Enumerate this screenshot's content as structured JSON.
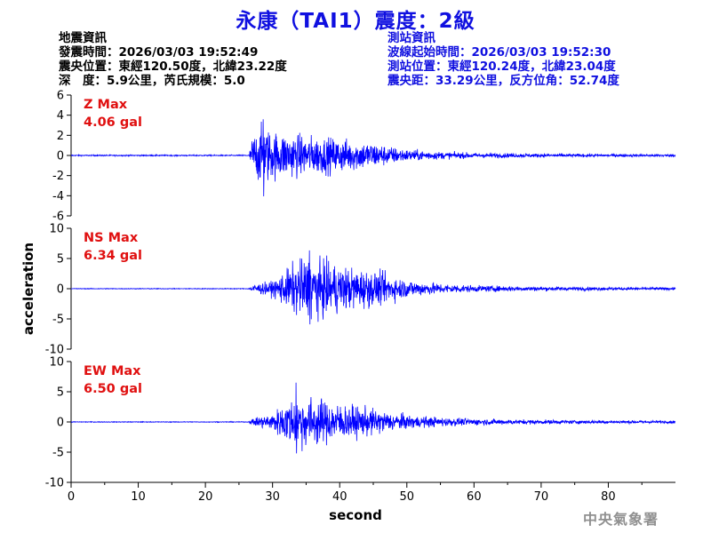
{
  "title": "永康（TAI1）震度：2級",
  "earthquake_info": {
    "heading": "地震資訊",
    "time": "發震時間：2026/03/03 19:52:49",
    "epicenter": "震央位置：東經120.50度，北緯23.22度",
    "depth_magnitude": "深　度：5.9公里，芮氏規模：5.0"
  },
  "station_info": {
    "heading": "測站資訊",
    "wave_start": "波線起始時間：2026/03/03 19:52:30",
    "location": "測站位置：東經120.24度，北緯23.04度",
    "distance_azimuth": "震央距：33.29公里，反方位角：52.74度"
  },
  "agency": "中央氣象署",
  "colors": {
    "trace": "#0000ff",
    "label": "#e01010",
    "title": "#1010e0"
  },
  "chart_data": {
    "type": "line",
    "xlabel": "second",
    "ylabel": "acceleration",
    "xlim": [
      0,
      90
    ],
    "x_ticks": [
      0,
      10,
      20,
      30,
      40,
      50,
      60,
      70,
      80
    ],
    "grid": false,
    "channels": [
      {
        "label": "Z Max",
        "max_text": "4.06 gal",
        "max_value": 4.06,
        "ylim": [
          -6,
          6
        ],
        "y_ticks": [
          -6,
          -4,
          -2,
          0,
          2,
          4,
          6
        ],
        "onset": 26.5,
        "envelope_peak_time": 29,
        "peak_time": 28.6,
        "peak_pos": 3.6,
        "peak_neg": -4.06,
        "envelope": [
          [
            0,
            0.05
          ],
          [
            26.5,
            0.05
          ],
          [
            27,
            1.6
          ],
          [
            28.5,
            2.6
          ],
          [
            30,
            2.0
          ],
          [
            33,
            1.8
          ],
          [
            36,
            1.6
          ],
          [
            40,
            1.4
          ],
          [
            45,
            1.1
          ],
          [
            47,
            0.8
          ],
          [
            50,
            0.5
          ],
          [
            55,
            0.3
          ],
          [
            60,
            0.22
          ],
          [
            70,
            0.15
          ],
          [
            80,
            0.12
          ],
          [
            90,
            0.1
          ]
        ]
      },
      {
        "label": "NS Max",
        "max_text": "6.34 gal",
        "max_value": 6.34,
        "ylim": [
          -10,
          10
        ],
        "y_ticks": [
          -10,
          -5,
          0,
          5,
          10
        ],
        "onset": 26.5,
        "envelope_peak_time": 35,
        "peak_time": 35.5,
        "peak_pos": 6.34,
        "peak_neg": -5.9,
        "envelope": [
          [
            0,
            0.05
          ],
          [
            26.5,
            0.05
          ],
          [
            27,
            0.6
          ],
          [
            30,
            1.0
          ],
          [
            32,
            2.6
          ],
          [
            34,
            4.0
          ],
          [
            36,
            4.6
          ],
          [
            38,
            3.8
          ],
          [
            41,
            3.0
          ],
          [
            44,
            2.6
          ],
          [
            47,
            2.0
          ],
          [
            50,
            1.2
          ],
          [
            55,
            0.7
          ],
          [
            60,
            0.45
          ],
          [
            70,
            0.3
          ],
          [
            80,
            0.22
          ],
          [
            90,
            0.18
          ]
        ]
      },
      {
        "label": "EW Max",
        "max_text": "6.50 gal",
        "max_value": 6.5,
        "ylim": [
          -10,
          10
        ],
        "y_ticks": [
          -10,
          -5,
          0,
          5,
          10
        ],
        "onset": 26.5,
        "envelope_peak_time": 34,
        "peak_time": 33.5,
        "peak_pos": 6.5,
        "peak_neg": -5.2,
        "envelope": [
          [
            0,
            0.05
          ],
          [
            26.5,
            0.05
          ],
          [
            27,
            0.5
          ],
          [
            30,
            1.2
          ],
          [
            32,
            2.8
          ],
          [
            34,
            3.6
          ],
          [
            36,
            3.4
          ],
          [
            39,
            2.7
          ],
          [
            42,
            2.2
          ],
          [
            45,
            1.8
          ],
          [
            48,
            1.2
          ],
          [
            52,
            0.8
          ],
          [
            58,
            0.5
          ],
          [
            65,
            0.35
          ],
          [
            75,
            0.25
          ],
          [
            90,
            0.18
          ]
        ]
      }
    ]
  }
}
